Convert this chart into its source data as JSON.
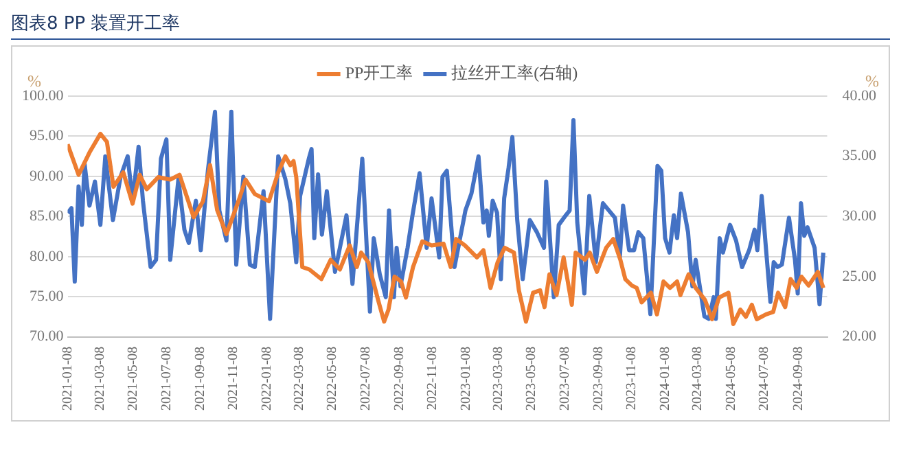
{
  "chart_data": {
    "type": "line",
    "title": "图表8 PP 装置开工率",
    "ylabel": "%",
    "y2label": "%",
    "xlim": [
      "2021-01-08",
      "2024-10-31"
    ],
    "xticks": [
      "2021-01-08",
      "2021-03-08",
      "2021-05-08",
      "2021-07-08",
      "2021-09-08",
      "2021-11-08",
      "2022-01-08",
      "2022-03-08",
      "2022-05-08",
      "2022-07-08",
      "2022-09-08",
      "2022-11-08",
      "2023-01-08",
      "2023-03-08",
      "2023-05-08",
      "2023-07-08",
      "2023-09-08",
      "2023-11-08",
      "2024-01-08",
      "2024-03-08",
      "2024-05-08",
      "2024-07-08",
      "2024-09-08"
    ],
    "ylim": [
      70,
      100
    ],
    "yticks": [
      {
        "value": 70,
        "label": "70.00"
      },
      {
        "value": 75,
        "label": "75.00"
      },
      {
        "value": 80,
        "label": "80.00"
      },
      {
        "value": 85,
        "label": "85.00"
      },
      {
        "value": 90,
        "label": "90.00"
      },
      {
        "value": 95,
        "label": "95.00"
      },
      {
        "value": 100,
        "label": "100.00"
      }
    ],
    "y2lim": [
      20,
      40
    ],
    "y2ticks": [
      {
        "value": 20,
        "label": "20.00"
      },
      {
        "value": 25,
        "label": "25.00"
      },
      {
        "value": 30,
        "label": "30.00"
      },
      {
        "value": 35,
        "label": "35.00"
      },
      {
        "value": 40,
        "label": "40.00"
      }
    ],
    "grid": "y",
    "legend": "top",
    "marker": "none",
    "line_style": "solid",
    "series": [
      {
        "name": "PP开工率",
        "color": "#ed7d31",
        "x": [
          "2021-01-08",
          "2021-01-28",
          "2021-02-18",
          "2021-03-09",
          "2021-03-21",
          "2021-04-02",
          "2021-04-20",
          "2021-05-07",
          "2021-05-20",
          "2021-06-02",
          "2021-06-23",
          "2021-07-15",
          "2021-08-01",
          "2021-08-27",
          "2021-09-13",
          "2021-09-26",
          "2021-10-09",
          "2021-10-26",
          "2021-11-17",
          "2021-11-30",
          "2021-12-17",
          "2022-01-12",
          "2022-01-29",
          "2022-02-11",
          "2022-02-20",
          "2022-02-26",
          "2022-03-03",
          "2022-03-14",
          "2022-03-27",
          "2022-04-18",
          "2022-05-05",
          "2022-05-22",
          "2022-06-09",
          "2022-06-22",
          "2022-06-30",
          "2022-07-13",
          "2022-07-31",
          "2022-08-11",
          "2022-08-19",
          "2022-08-30",
          "2022-09-11",
          "2022-09-20",
          "2022-10-03",
          "2022-10-20",
          "2022-11-06",
          "2022-11-28",
          "2022-12-11",
          "2022-12-21",
          "2023-01-06",
          "2023-01-28",
          "2023-02-09",
          "2023-02-22",
          "2023-03-07",
          "2023-03-20",
          "2023-04-06",
          "2023-04-15",
          "2023-04-28",
          "2023-05-11",
          "2023-05-24",
          "2023-06-01",
          "2023-06-10",
          "2023-06-23",
          "2023-07-06",
          "2023-07-21",
          "2023-07-28",
          "2023-08-14",
          "2023-08-23",
          "2023-09-05",
          "2023-09-22",
          "2023-10-05",
          "2023-10-18",
          "2023-10-27",
          "2023-11-08",
          "2023-11-17",
          "2023-11-26",
          "2023-12-13",
          "2023-12-24",
          "2024-01-05",
          "2024-01-17",
          "2024-01-30",
          "2024-02-05",
          "2024-02-20",
          "2024-03-04",
          "2024-03-21",
          "2024-04-03",
          "2024-04-16",
          "2024-05-03",
          "2024-05-12",
          "2024-05-25",
          "2024-06-04",
          "2024-06-15",
          "2024-06-24",
          "2024-07-11",
          "2024-07-24",
          "2024-08-02",
          "2024-08-15",
          "2024-08-25",
          "2024-09-05",
          "2024-09-14",
          "2024-09-27",
          "2024-10-14",
          "2024-10-24"
        ],
        "values": [
          94.0,
          90.2,
          93.1,
          95.3,
          94.3,
          88.7,
          90.5,
          86.6,
          90.2,
          88.4,
          89.9,
          89.6,
          90.2,
          84.9,
          86.9,
          91.4,
          85.8,
          82.8,
          86.9,
          89.6,
          87.8,
          86.9,
          90.5,
          92.5,
          91.4,
          91.9,
          89.9,
          78.7,
          78.4,
          77.2,
          79.6,
          78.4,
          81.4,
          78.7,
          80.5,
          79.3,
          74.6,
          71.9,
          73.4,
          77.5,
          76.9,
          74.9,
          78.7,
          81.9,
          81.4,
          81.6,
          78.7,
          82.2,
          81.4,
          79.9,
          80.8,
          76.1,
          79.3,
          81.1,
          80.5,
          75.8,
          71.9,
          75.5,
          75.8,
          73.7,
          77.8,
          75.2,
          79.9,
          74.0,
          80.5,
          79.6,
          80.5,
          78.1,
          81.1,
          82.2,
          79.6,
          77.2,
          76.4,
          76.1,
          74.3,
          75.5,
          72.8,
          76.9,
          76.1,
          76.9,
          75.2,
          77.8,
          76.1,
          74.6,
          72.2,
          74.9,
          75.5,
          71.6,
          73.4,
          72.5,
          74.0,
          72.2,
          72.8,
          73.1,
          75.5,
          73.7,
          77.2,
          76.1,
          77.5,
          76.4,
          78.1,
          76.1
        ]
      },
      {
        "name": "拉丝开工率(右轴)",
        "color": "#4472c4",
        "axis": "y2",
        "x": [
          "2021-01-08",
          "2021-01-15",
          "2021-01-21",
          "2021-01-28",
          "2021-02-03",
          "2021-02-08",
          "2021-02-17",
          "2021-02-27",
          "2021-03-09",
          "2021-03-18",
          "2021-04-01",
          "2021-04-15",
          "2021-04-28",
          "2021-05-07",
          "2021-05-18",
          "2021-05-26",
          "2021-06-09",
          "2021-06-19",
          "2021-06-28",
          "2021-07-08",
          "2021-07-15",
          "2021-07-30",
          "2021-08-10",
          "2021-08-18",
          "2021-08-31",
          "2021-09-09",
          "2021-09-22",
          "2021-10-05",
          "2021-10-13",
          "2021-10-26",
          "2021-11-04",
          "2021-11-13",
          "2021-11-26",
          "2021-12-08",
          "2021-12-17",
          "2022-01-02",
          "2022-01-14",
          "2022-01-29",
          "2022-02-11",
          "2022-02-20",
          "2022-03-03",
          "2022-03-10",
          "2022-03-26",
          "2022-03-31",
          "2022-04-05",
          "2022-04-12",
          "2022-04-19",
          "2022-04-28",
          "2022-05-13",
          "2022-06-03",
          "2022-06-14",
          "2022-07-02",
          "2022-07-16",
          "2022-07-23",
          "2022-08-03",
          "2022-08-14",
          "2022-08-20",
          "2022-08-29",
          "2022-09-03",
          "2022-09-10",
          "2022-09-23",
          "2022-10-02",
          "2022-10-15",
          "2022-10-28",
          "2022-11-06",
          "2022-11-20",
          "2022-11-26",
          "2022-12-04",
          "2022-12-18",
          "2023-01-07",
          "2023-01-18",
          "2023-01-31",
          "2023-02-09",
          "2023-02-15",
          "2023-02-19",
          "2023-02-26",
          "2023-03-06",
          "2023-03-13",
          "2023-03-19",
          "2023-03-27",
          "2023-04-03",
          "2023-04-12",
          "2023-04-22",
          "2023-05-05",
          "2023-05-18",
          "2023-05-31",
          "2023-06-04",
          "2023-06-18",
          "2023-06-27",
          "2023-07-10",
          "2023-07-17",
          "2023-07-24",
          "2023-07-31",
          "2023-08-13",
          "2023-08-22",
          "2023-09-03",
          "2023-09-16",
          "2023-10-08",
          "2023-10-17",
          "2023-10-23",
          "2023-11-03",
          "2023-11-12",
          "2023-11-20",
          "2023-11-29",
          "2023-12-12",
          "2023-12-25",
          "2024-01-01",
          "2024-01-08",
          "2024-01-16",
          "2024-01-24",
          "2024-01-30",
          "2024-02-06",
          "2024-02-19",
          "2024-02-27",
          "2024-03-04",
          "2024-03-20",
          "2024-03-28",
          "2024-04-06",
          "2024-04-10",
          "2024-04-17",
          "2024-04-23",
          "2024-05-06",
          "2024-05-17",
          "2024-05-28",
          "2024-06-10",
          "2024-06-20",
          "2024-06-25",
          "2024-07-03",
          "2024-07-10",
          "2024-07-19",
          "2024-07-25",
          "2024-08-01",
          "2024-08-09",
          "2024-08-22",
          "2024-09-02",
          "2024-09-07",
          "2024-09-13",
          "2024-09-19",
          "2024-09-25",
          "2024-10-08",
          "2024-10-17",
          "2024-10-24"
        ],
        "values": [
          30.3,
          30.7,
          24.6,
          32.5,
          29.3,
          34.4,
          30.9,
          32.9,
          29.3,
          35.0,
          29.7,
          33.3,
          35.0,
          31.3,
          35.8,
          31.3,
          25.8,
          26.4,
          34.8,
          36.4,
          26.4,
          33.1,
          28.9,
          27.8,
          31.3,
          27.2,
          33.8,
          38.7,
          30.5,
          28.0,
          38.7,
          26.0,
          33.3,
          26.0,
          25.8,
          32.1,
          21.5,
          35.0,
          33.1,
          31.1,
          26.2,
          31.7,
          34.8,
          35.6,
          28.2,
          33.5,
          28.5,
          32.1,
          25.4,
          30.1,
          24.4,
          34.8,
          22.1,
          28.2,
          25.2,
          23.3,
          30.5,
          23.3,
          27.4,
          24.2,
          27.4,
          30.1,
          33.6,
          27.4,
          31.5,
          26.6,
          33.3,
          33.8,
          25.8,
          30.5,
          31.9,
          35.0,
          29.5,
          30.5,
          28.4,
          31.3,
          30.3,
          24.8,
          31.5,
          34.0,
          36.6,
          29.7,
          24.8,
          29.7,
          28.7,
          27.4,
          32.9,
          23.3,
          29.3,
          30.1,
          30.5,
          38.0,
          29.5,
          23.6,
          31.7,
          26.2,
          31.1,
          29.9,
          26.6,
          30.9,
          27.2,
          27.2,
          28.7,
          28.2,
          21.9,
          34.2,
          33.8,
          28.2,
          27.0,
          30.1,
          28.2,
          31.9,
          28.7,
          24.2,
          26.4,
          21.7,
          21.5,
          23.3,
          21.5,
          28.2,
          27.0,
          29.3,
          28.0,
          25.8,
          27.2,
          28.9,
          27.2,
          31.7,
          27.8,
          22.9,
          26.2,
          25.8,
          26.0,
          29.9,
          26.4,
          23.6,
          31.1,
          28.4,
          29.1,
          27.4,
          22.7,
          27.0
        ]
      }
    ]
  }
}
